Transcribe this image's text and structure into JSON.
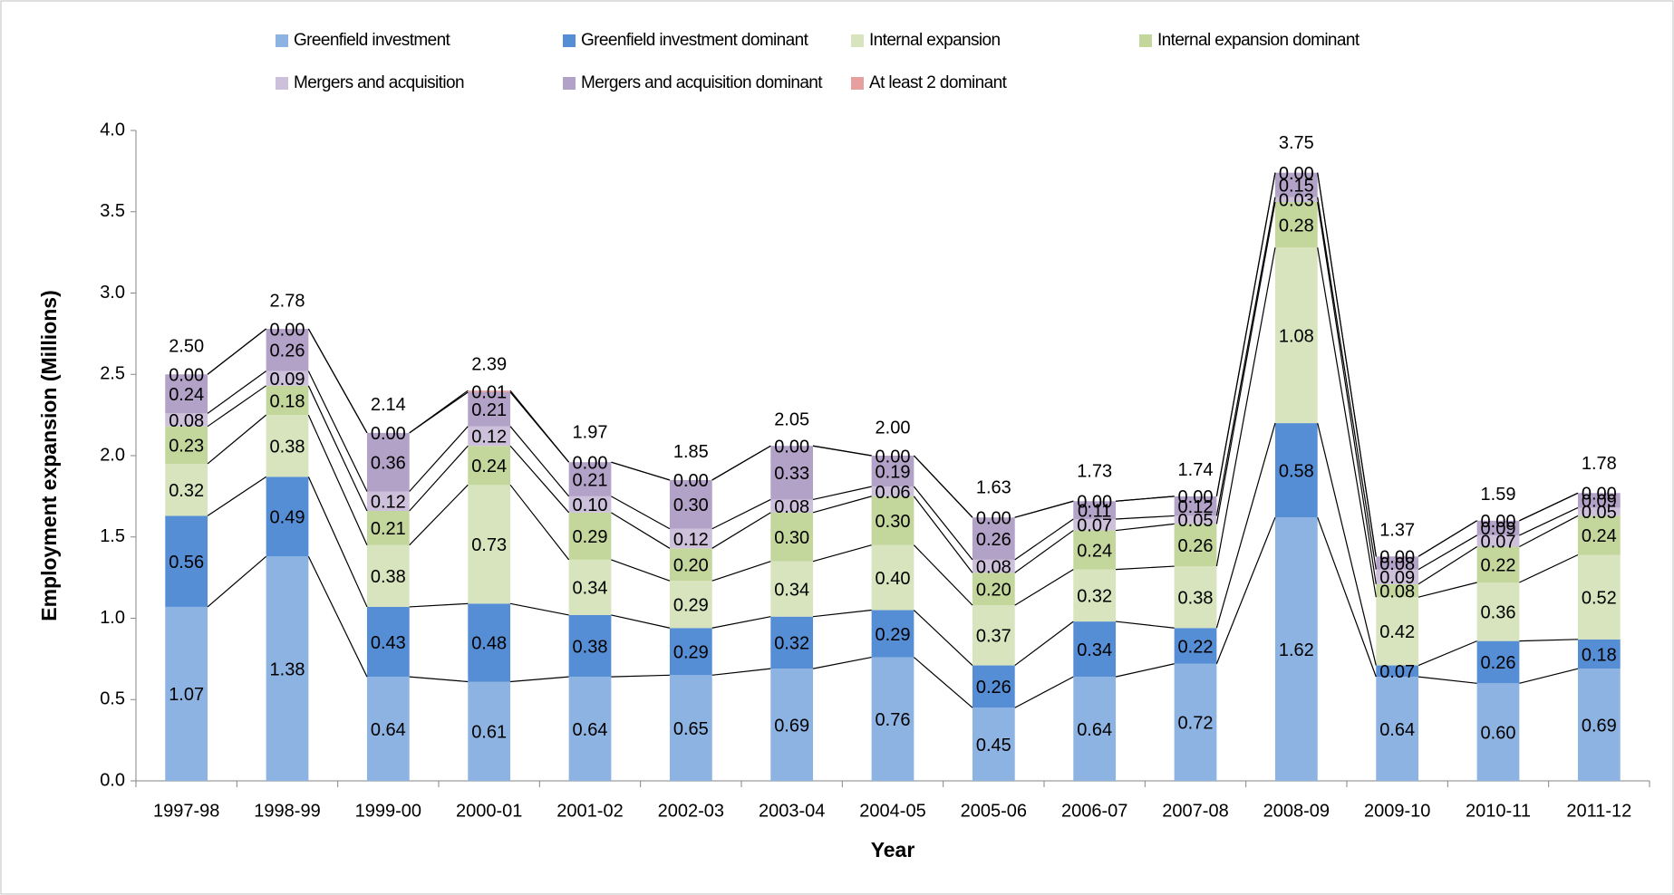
{
  "chart_data": {
    "type": "stacked_bar",
    "x_label": "Year",
    "y_label": "Employment expansion (Millions)",
    "categories": [
      "1997-98",
      "1998-99",
      "1999-00",
      "2000-01",
      "2001-02",
      "2002-03",
      "2003-04",
      "2004-05",
      "2005-06",
      "2006-07",
      "2007-08",
      "2008-09",
      "2009-10",
      "2010-11",
      "2011-12"
    ],
    "series": [
      {
        "name": "Greenfield investment",
        "color": "#8db3e2",
        "values": [
          1.07,
          1.38,
          0.64,
          0.61,
          0.64,
          0.65,
          0.69,
          0.76,
          0.45,
          0.64,
          0.72,
          1.62,
          0.64,
          0.6,
          0.69
        ],
        "value_labels": [
          "1.07",
          "1.38",
          "0.64",
          "0.61",
          "0.64",
          "0.65",
          "0.69",
          "0.76",
          "0.45",
          "0.64",
          "0.72",
          "1.62",
          "0.64",
          "0.60",
          "0.69"
        ]
      },
      {
        "name": "Greenfield investment dominant",
        "color": "#558ed5",
        "values": [
          0.56,
          0.49,
          0.43,
          0.48,
          0.38,
          0.29,
          0.32,
          0.29,
          0.26,
          0.34,
          0.22,
          0.58,
          0.07,
          0.26,
          0.18
        ],
        "value_labels": [
          "0.56",
          "0.49",
          "0.43",
          "0.48",
          "0.38",
          "0.29",
          "0.32",
          "0.29",
          "0.26",
          "0.34",
          "0.22",
          "0.58",
          "0.07",
          "0.26",
          "0.18"
        ]
      },
      {
        "name": "Internal expansion",
        "color": "#d7e4bd",
        "values": [
          0.32,
          0.38,
          0.38,
          0.73,
          0.34,
          0.29,
          0.34,
          0.4,
          0.37,
          0.32,
          0.38,
          1.08,
          0.42,
          0.36,
          0.52
        ],
        "value_labels": [
          "0.32",
          "0.38",
          "0.38",
          "0.73",
          "0.34",
          "0.29",
          "0.34",
          "0.40",
          "0.37",
          "0.32",
          "0.38",
          "1.08",
          "0.42",
          "0.36",
          "0.52"
        ]
      },
      {
        "name": "Internal expansion dominant",
        "color": "#c3d69b",
        "values": [
          0.23,
          0.18,
          0.21,
          0.24,
          0.29,
          0.2,
          0.3,
          0.3,
          0.2,
          0.24,
          0.26,
          0.28,
          0.08,
          0.22,
          0.24
        ],
        "value_labels": [
          "0.23",
          "0.18",
          "0.21",
          "0.24",
          "0.29",
          "0.20",
          "0.30",
          "0.30",
          "0.20",
          "0.24",
          "0.26",
          "0.28",
          "0.08",
          "0.22",
          "0.24"
        ]
      },
      {
        "name": "Mergers and acquisition",
        "color": "#ccc0da",
        "values": [
          0.08,
          0.09,
          0.12,
          0.12,
          0.1,
          0.12,
          0.08,
          0.06,
          0.08,
          0.07,
          0.05,
          0.03,
          0.09,
          0.07,
          0.05
        ],
        "value_labels": [
          "0.08",
          "0.09",
          "0.12",
          "0.12",
          "0.10",
          "0.12",
          "0.08",
          "0.06",
          "0.08",
          "0.07",
          "0.05",
          "0.03",
          "0.09",
          "0.07",
          "0.05"
        ]
      },
      {
        "name": "Mergers and acquisition dominant",
        "color": "#b3a2c7",
        "values": [
          0.24,
          0.26,
          0.36,
          0.21,
          0.21,
          0.3,
          0.33,
          0.19,
          0.26,
          0.11,
          0.12,
          0.15,
          0.08,
          0.09,
          0.09
        ],
        "value_labels": [
          "0.24",
          "0.26",
          "0.36",
          "0.21",
          "0.21",
          "0.30",
          "0.33",
          "0.19",
          "0.26",
          "0.11",
          "0.12",
          "0.15",
          "0.08",
          "0.09",
          "0.09"
        ]
      },
      {
        "name": "At least 2 dominant",
        "color": "#e6a0a0",
        "values": [
          0,
          0,
          0,
          0.01,
          0,
          0,
          0,
          0,
          0,
          0,
          0,
          0,
          0,
          0,
          0
        ],
        "value_labels": [
          "0.00",
          "0.00",
          "0.00",
          "0.01",
          "0.00",
          "0.00",
          "0.00",
          "0.00",
          "0.00",
          "0.00",
          "0.00",
          "0.00",
          "0.00",
          "0.00",
          "0.00"
        ]
      }
    ],
    "totals": [
      2.5,
      2.78,
      2.14,
      2.39,
      1.97,
      1.85,
      2.05,
      2.0,
      1.63,
      1.73,
      1.74,
      3.75,
      1.37,
      1.59,
      1.78
    ],
    "total_labels": [
      "2.50",
      "2.78",
      "2.14",
      "2.39",
      "1.97",
      "1.85",
      "2.05",
      "2.00",
      "1.63",
      "1.73",
      "1.74",
      "3.75",
      "1.37",
      "1.59",
      "1.78"
    ],
    "ylim": [
      0,
      4
    ],
    "yticks": [
      {
        "value": 0,
        "label": "0.0"
      },
      {
        "value": 0.5,
        "label": "0.5"
      },
      {
        "value": 1,
        "label": "1.0"
      },
      {
        "value": 1.5,
        "label": "1.5"
      },
      {
        "value": 2,
        "label": "2.0"
      },
      {
        "value": 2.5,
        "label": "2.5"
      },
      {
        "value": 3,
        "label": "3.0"
      },
      {
        "value": 3.5,
        "label": "3.5"
      },
      {
        "value": 4,
        "label": "4.0"
      }
    ]
  }
}
